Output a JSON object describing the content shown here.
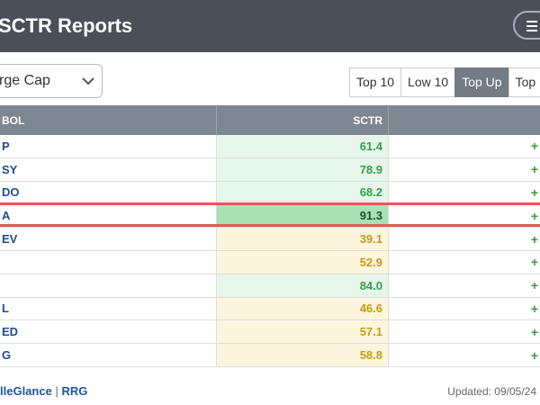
{
  "header": {
    "title": "SCTR Reports"
  },
  "controls": {
    "dropdown": "rge Cap",
    "buttons": [
      "Top 10",
      "Low 10",
      "Top Up",
      "Top D"
    ],
    "active_button": 2
  },
  "table": {
    "columns": [
      "BOL",
      "SCTR"
    ],
    "rows": [
      {
        "symbol": "P",
        "sctr": "61.4",
        "change": "+",
        "tone": "green"
      },
      {
        "symbol": "SY",
        "sctr": "78.9",
        "change": "+",
        "tone": "green"
      },
      {
        "symbol": "DO",
        "sctr": "68.2",
        "change": "+",
        "tone": "green"
      },
      {
        "symbol": "A",
        "sctr": "91.3",
        "change": "+",
        "tone": "strong"
      },
      {
        "symbol": "EV",
        "sctr": "39.1",
        "change": "+",
        "tone": "yellow"
      },
      {
        "symbol": null,
        "sctr": "52.9",
        "change": "+",
        "tone": "yellow"
      },
      {
        "symbol": null,
        "sctr": "84.0",
        "change": "+",
        "tone": "green"
      },
      {
        "symbol": "L",
        "sctr": "46.6",
        "change": "+",
        "tone": "yellow"
      },
      {
        "symbol": "ED",
        "sctr": "57.1",
        "change": "+",
        "tone": "yellow"
      },
      {
        "symbol": "G",
        "sctr": "58.8",
        "change": "+",
        "tone": "yellow"
      }
    ],
    "highlight_row": 3
  },
  "footer": {
    "links": [
      "lleGlance",
      "RRG"
    ],
    "separator": "|",
    "updated": "Updated: 09/05/24"
  }
}
